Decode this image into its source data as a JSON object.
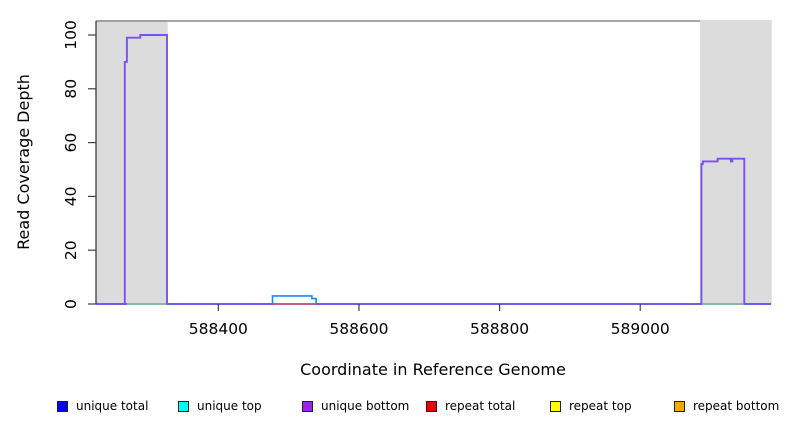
{
  "chart_data": {
    "type": "line",
    "title": "",
    "xlabel": "Coordinate in Reference Genome",
    "ylabel": "Read Coverage Depth",
    "x_ticks": [
      588400,
      588600,
      588800,
      589000
    ],
    "y_ticks": [
      0,
      20,
      40,
      60,
      80,
      100
    ],
    "x_range": [
      588226,
      589186
    ],
    "y_range": [
      0,
      105.2
    ],
    "ylim": [
      0,
      100
    ],
    "grid": false,
    "legend_position": "bottom",
    "shaded_regions": [
      {
        "name": "left-highlight",
        "x1": 588226,
        "x2": 588328,
        "color": "#DCDCDC"
      },
      {
        "name": "right-highlight",
        "x1": 589085,
        "x2": 589187,
        "color": "#DCDCDC"
      }
    ],
    "series": [
      {
        "name": "coverage-baseline-zero",
        "color": "#6C5CE8",
        "width": 2.0,
        "segments": [
          [
            [
              588226,
              0
            ],
            [
              589186,
              0
            ]
          ]
        ]
      },
      {
        "name": "zero-under-peaks-green",
        "color": "#8FD88F",
        "width": 1.6,
        "segments": [
          [
            [
              588270,
              0
            ],
            [
              588326,
              0
            ]
          ],
          [
            [
              589088,
              0
            ],
            [
              589147,
              0
            ]
          ]
        ]
      },
      {
        "name": "repeat-zero-under-bump-red",
        "color": "#E8596E",
        "width": 1.5,
        "segments": [
          [
            [
              588478,
              0
            ],
            [
              588538,
              0
            ]
          ]
        ]
      },
      {
        "name": "unique-top-bump-blue",
        "color": "#1E86F0",
        "width": 1.6,
        "segments": [
          [
            [
              588477,
              0
            ],
            [
              588477,
              3
            ],
            [
              588533,
              3
            ],
            [
              588533,
              2
            ],
            [
              588539,
              2
            ],
            [
              588539,
              0
            ]
          ]
        ]
      },
      {
        "name": "unique-coverage-peaks-purple",
        "color": "#7B50F0",
        "width": 1.9,
        "segments": [
          [
            [
              588267,
              0
            ],
            [
              588267,
              90
            ],
            [
              588270,
              90
            ],
            [
              588270,
              99
            ],
            [
              588289,
              99
            ],
            [
              588289,
              100
            ],
            [
              588327,
              100
            ],
            [
              588327,
              0
            ]
          ],
          [
            [
              589087,
              0
            ],
            [
              589087,
              52
            ],
            [
              589089,
              52
            ],
            [
              589089,
              53
            ],
            [
              589110,
              53
            ],
            [
              589110,
              54
            ],
            [
              589129,
              54
            ],
            [
              589129,
              53
            ],
            [
              589131,
              53
            ],
            [
              589131,
              54
            ],
            [
              589148,
              54
            ],
            [
              589148,
              0
            ]
          ]
        ]
      }
    ],
    "legend": [
      {
        "label": "unique total",
        "color": "#0000FF"
      },
      {
        "label": "unique top",
        "color": "#00FFFF"
      },
      {
        "label": "unique bottom",
        "color": "#A020F0"
      },
      {
        "label": "repeat total",
        "color": "#EE0000"
      },
      {
        "label": "repeat top",
        "color": "#FFFF00"
      },
      {
        "label": "repeat bottom",
        "color": "#FFA500"
      }
    ]
  }
}
